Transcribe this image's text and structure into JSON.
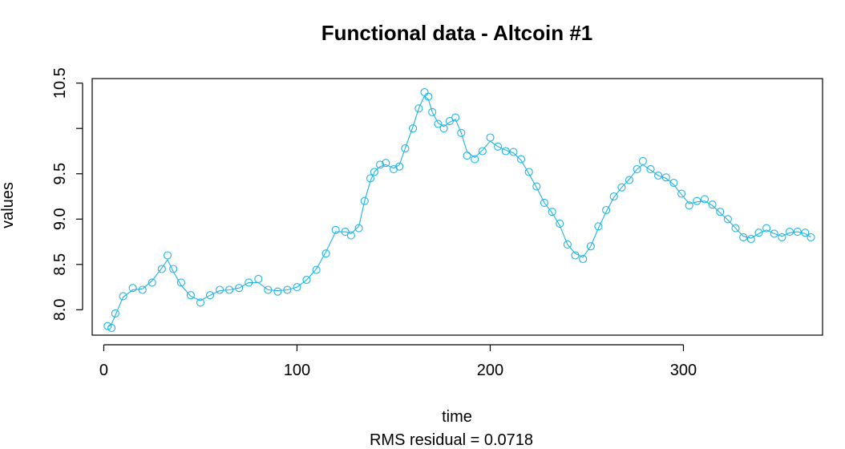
{
  "chart_data": {
    "type": "scatter",
    "title": "Functional data - Altcoin #1",
    "xlabel": "time",
    "ylabel": "values",
    "subtitle": "RMS residual = 0.0718",
    "xlim": [
      -6,
      372
    ],
    "ylim": [
      7.72,
      10.55
    ],
    "xticks": [
      0,
      100,
      200,
      300
    ],
    "xtick_labels": [
      "0",
      "100",
      "200",
      "300"
    ],
    "yticks": [
      8.0,
      8.5,
      9.0,
      9.5,
      10.0,
      10.5
    ],
    "ytick_labels": [
      "8.0",
      "8.5",
      "9.0",
      "9.5",
      "",
      "10.5"
    ],
    "grid": false,
    "color": "#1fb4e6",
    "x": [
      2,
      4,
      6,
      10,
      15,
      20,
      25,
      30,
      33,
      36,
      40,
      45,
      50,
      55,
      60,
      65,
      70,
      75,
      80,
      85,
      90,
      95,
      100,
      105,
      110,
      115,
      120,
      125,
      128,
      132,
      135,
      138,
      140,
      143,
      146,
      150,
      153,
      156,
      160,
      163,
      166,
      168,
      170,
      173,
      176,
      179,
      182,
      185,
      188,
      192,
      196,
      200,
      204,
      208,
      212,
      216,
      220,
      224,
      228,
      232,
      236,
      240,
      244,
      248,
      252,
      256,
      260,
      264,
      268,
      272,
      276,
      279,
      283,
      287,
      291,
      295,
      299,
      303,
      307,
      311,
      315,
      319,
      323,
      327,
      331,
      335,
      339,
      343,
      347,
      351,
      355,
      359,
      363,
      366
    ],
    "y": [
      7.82,
      7.8,
      7.96,
      8.15,
      8.24,
      8.22,
      8.3,
      8.45,
      8.6,
      8.45,
      8.3,
      8.16,
      8.08,
      8.16,
      8.22,
      8.22,
      8.24,
      8.3,
      8.34,
      8.22,
      8.2,
      8.22,
      8.25,
      8.33,
      8.44,
      8.62,
      8.88,
      8.86,
      8.82,
      8.9,
      9.2,
      9.45,
      9.52,
      9.6,
      9.62,
      9.55,
      9.58,
      9.78,
      10.0,
      10.22,
      10.4,
      10.35,
      10.18,
      10.05,
      10.0,
      10.08,
      10.12,
      9.95,
      9.7,
      9.66,
      9.75,
      9.9,
      9.8,
      9.75,
      9.74,
      9.66,
      9.52,
      9.36,
      9.18,
      9.08,
      8.95,
      8.72,
      8.6,
      8.56,
      8.7,
      8.92,
      9.1,
      9.25,
      9.35,
      9.43,
      9.55,
      9.64,
      9.55,
      9.48,
      9.46,
      9.4,
      9.28,
      9.15,
      9.2,
      9.22,
      9.16,
      9.08,
      9.0,
      8.9,
      8.8,
      8.78,
      8.85,
      8.9,
      8.84,
      8.8,
      8.86,
      8.86,
      8.85,
      8.8
    ],
    "curve_y": [
      7.81,
      7.84,
      7.94,
      8.14,
      8.22,
      8.23,
      8.32,
      8.46,
      8.55,
      8.42,
      8.27,
      8.15,
      8.1,
      8.16,
      8.21,
      8.22,
      8.24,
      8.3,
      8.3,
      8.22,
      8.21,
      8.22,
      8.25,
      8.33,
      8.45,
      8.64,
      8.86,
      8.86,
      8.84,
      8.92,
      9.2,
      9.42,
      9.52,
      9.58,
      9.6,
      9.56,
      9.6,
      9.78,
      10.02,
      10.22,
      10.36,
      10.32,
      10.18,
      10.06,
      10.02,
      10.07,
      10.1,
      9.95,
      9.74,
      9.68,
      9.76,
      9.86,
      9.8,
      9.76,
      9.73,
      9.65,
      9.5,
      9.35,
      9.18,
      9.07,
      8.93,
      8.72,
      8.62,
      8.58,
      8.7,
      8.9,
      9.08,
      9.24,
      9.35,
      9.44,
      9.55,
      9.6,
      9.54,
      9.48,
      9.45,
      9.38,
      9.27,
      9.17,
      9.19,
      9.2,
      9.15,
      9.07,
      8.99,
      8.9,
      8.81,
      8.79,
      8.84,
      8.88,
      8.84,
      8.81,
      8.85,
      8.86,
      8.84,
      8.8
    ]
  }
}
